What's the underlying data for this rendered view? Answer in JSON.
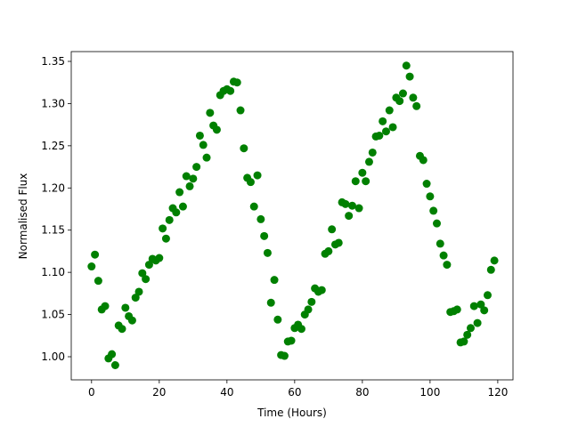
{
  "chart_data": {
    "type": "scatter",
    "xlabel": "Time (Hours)",
    "ylabel": "Normalised Flux",
    "color": "#008000",
    "xlim": [
      -6,
      124.5
    ],
    "ylim": [
      0.9726,
      1.3616
    ],
    "xticks": [
      0,
      20,
      40,
      60,
      80,
      100,
      120
    ],
    "yticks": [
      {
        "value": 1.0,
        "label": "1.00"
      },
      1.05,
      {
        "value": 1.1,
        "label": "1.10"
      },
      1.15,
      {
        "value": 1.2,
        "label": "1.20"
      },
      1.25,
      {
        "value": 1.3,
        "label": "1.30"
      },
      1.35
    ],
    "grid": false,
    "x": [
      0,
      1,
      2,
      3,
      4,
      5,
      6,
      7,
      8,
      9,
      10,
      11,
      12,
      13,
      14,
      15,
      16,
      17,
      18,
      19,
      20,
      21,
      22,
      23,
      24,
      25,
      26,
      27,
      28,
      29,
      30,
      31,
      32,
      33,
      34,
      35,
      36,
      37,
      38,
      39,
      40,
      41,
      42,
      43,
      44,
      45,
      46,
      47,
      48,
      49,
      50,
      51,
      52,
      53,
      54,
      55,
      56,
      57,
      58,
      59,
      60,
      61,
      62,
      63,
      64,
      65,
      66,
      67,
      68,
      69,
      70,
      71,
      72,
      73,
      74,
      75,
      76,
      77,
      78,
      79,
      80,
      81,
      82,
      83,
      84,
      85,
      86,
      87,
      88,
      89,
      90,
      91,
      92,
      93,
      94,
      95,
      96,
      97,
      98,
      99,
      100,
      101,
      102,
      103,
      104,
      105,
      106,
      107,
      108,
      109,
      110,
      111,
      112,
      113,
      114,
      115,
      116,
      117,
      118,
      119
    ],
    "values": [
      1.107,
      1.121,
      1.09,
      1.056,
      1.06,
      0.998,
      1.003,
      0.99,
      1.037,
      1.033,
      1.058,
      1.048,
      1.043,
      1.07,
      1.077,
      1.099,
      1.092,
      1.109,
      1.116,
      1.114,
      1.117,
      1.152,
      1.14,
      1.162,
      1.176,
      1.171,
      1.195,
      1.178,
      1.214,
      1.202,
      1.211,
      1.225,
      1.262,
      1.251,
      1.236,
      1.289,
      1.274,
      1.269,
      1.31,
      1.315,
      1.317,
      1.315,
      1.326,
      1.325,
      1.292,
      1.247,
      1.212,
      1.207,
      1.178,
      1.215,
      1.163,
      1.143,
      1.123,
      1.064,
      1.091,
      1.044,
      1.002,
      1.001,
      1.018,
      1.019,
      1.034,
      1.038,
      1.033,
      1.05,
      1.056,
      1.065,
      1.081,
      1.077,
      1.079,
      1.122,
      1.125,
      1.151,
      1.133,
      1.135,
      1.183,
      1.181,
      1.167,
      1.179,
      1.208,
      1.176,
      1.218,
      1.208,
      1.231,
      1.242,
      1.261,
      1.262,
      1.279,
      1.267,
      1.292,
      1.272,
      1.307,
      1.303,
      1.312,
      1.345,
      1.332,
      1.307,
      1.297,
      1.238,
      1.233,
      1.205,
      1.19,
      1.173,
      1.158,
      1.134,
      1.12,
      1.109,
      1.053,
      1.054,
      1.056,
      1.017,
      1.018,
      1.026,
      1.034,
      1.06,
      1.04,
      1.062,
      1.055,
      1.073,
      1.103,
      1.114
    ]
  }
}
